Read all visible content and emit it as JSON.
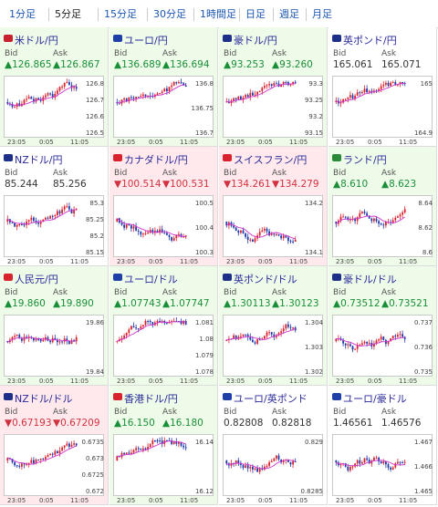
{
  "tabs": [
    {
      "label": "1分足",
      "active": false
    },
    {
      "label": "5分足",
      "active": true
    },
    {
      "label": "15分足",
      "active": false
    },
    {
      "label": "30分足",
      "active": false
    },
    {
      "label": "1時間足",
      "active": false
    },
    {
      "label": "日足",
      "active": false
    },
    {
      "label": "週足",
      "active": false
    },
    {
      "label": "月足",
      "active": false
    }
  ],
  "bid_label": "Bid",
  "ask_label": "Ask",
  "x_ticks": [
    "23:05",
    "0:05",
    "11:05"
  ],
  "colors": {
    "up_bg": "#eefbe8",
    "down_bg": "#ffe9ec",
    "up_text": "#1a8f3a",
    "down_text": "#d2323f",
    "candle_up": "#d8232f",
    "candle_down": "#1f3aa8",
    "ma": "#cc33cc"
  },
  "pairs": [
    {
      "name": "米ドル/円",
      "flag": "us-flag",
      "dir": "up",
      "bid": "▲126.865",
      "ask": "▲126.867",
      "yticks": [
        "126.8",
        "126.7",
        "126.6",
        "126.5"
      ]
    },
    {
      "name": "ユーロ/円",
      "flag": "eu-flag",
      "dir": "up",
      "bid": "▲136.689",
      "ask": "▲136.694",
      "yticks": [
        "136.8",
        "136.75",
        "136.7"
      ]
    },
    {
      "name": "豪ドル/円",
      "flag": "au-flag",
      "dir": "up",
      "bid": "▲93.253",
      "ask": "▲93.260",
      "yticks": [
        "93.3",
        "93.25",
        "93.2",
        "93.15"
      ]
    },
    {
      "name": "英ポンド/円",
      "flag": "gb-flag",
      "dir": "flat",
      "bid": "165.061",
      "ask": "165.071",
      "yticks": [
        "165",
        "164.9"
      ]
    },
    {
      "name": "NZドル/円",
      "flag": "nz-flag",
      "dir": "flat",
      "bid": "85.244",
      "ask": "85.256",
      "yticks": [
        "85.3",
        "85.25",
        "85.2",
        "85.15"
      ]
    },
    {
      "name": "カナダドル/円",
      "flag": "ca-flag",
      "dir": "down",
      "bid": "▼100.514",
      "ask": "▼100.531",
      "yticks": [
        "100.5",
        "100.4",
        "100.3"
      ]
    },
    {
      "name": "スイスフラン/円",
      "flag": "ch-flag",
      "dir": "down",
      "bid": "▼134.261",
      "ask": "▼134.279",
      "yticks": [
        "134.2",
        "134.1"
      ]
    },
    {
      "name": "ランド/円",
      "flag": "za-flag",
      "dir": "up",
      "bid": "▲8.610",
      "ask": "▲8.623",
      "yticks": [
        "8.64",
        "8.62",
        "8.6"
      ]
    },
    {
      "name": "人民元/円",
      "flag": "cn-flag",
      "dir": "up",
      "bid": "▲19.860",
      "ask": "▲19.890",
      "yticks": [
        "19.86",
        "19.84"
      ]
    },
    {
      "name": "ユーロ/ドル",
      "flag": "eu-flag",
      "dir": "up",
      "bid": "▲1.07743",
      "ask": "▲1.07747",
      "yticks": [
        "1.081",
        "1.08",
        "1.079",
        "1.078"
      ]
    },
    {
      "name": "英ポンド/ドル",
      "flag": "gb-flag",
      "dir": "up",
      "bid": "▲1.30113",
      "ask": "▲1.30123",
      "yticks": [
        "1.304",
        "1.303",
        "1.302"
      ]
    },
    {
      "name": "豪ドル/ドル",
      "flag": "au-flag",
      "dir": "up",
      "bid": "▲0.73512",
      "ask": "▲0.73521",
      "yticks": [
        "0.737",
        "0.736",
        "0.735"
      ]
    },
    {
      "name": "NZドル/ドル",
      "flag": "nz-flag",
      "dir": "down",
      "bid": "▼0.67193",
      "ask": "▼0.67209",
      "yticks": [
        "0.6735",
        "0.673",
        "0.6725",
        "0.672"
      ]
    },
    {
      "name": "香港ドル/円",
      "flag": "hk-flag",
      "dir": "up",
      "bid": "▲16.150",
      "ask": "▲16.180",
      "yticks": [
        "16.14",
        "16.12"
      ]
    },
    {
      "name": "ユーロ/英ポンド",
      "flag": "eu-flag",
      "dir": "flat",
      "bid": "0.82808",
      "ask": "0.82818",
      "yticks": [
        "0.829",
        "0.8285"
      ]
    },
    {
      "name": "ユーロ/豪ドル",
      "flag": "eu-flag",
      "dir": "flat",
      "bid": "1.46561",
      "ask": "1.46576",
      "yticks": [
        "1.467",
        "1.466",
        "1.465"
      ]
    }
  ]
}
